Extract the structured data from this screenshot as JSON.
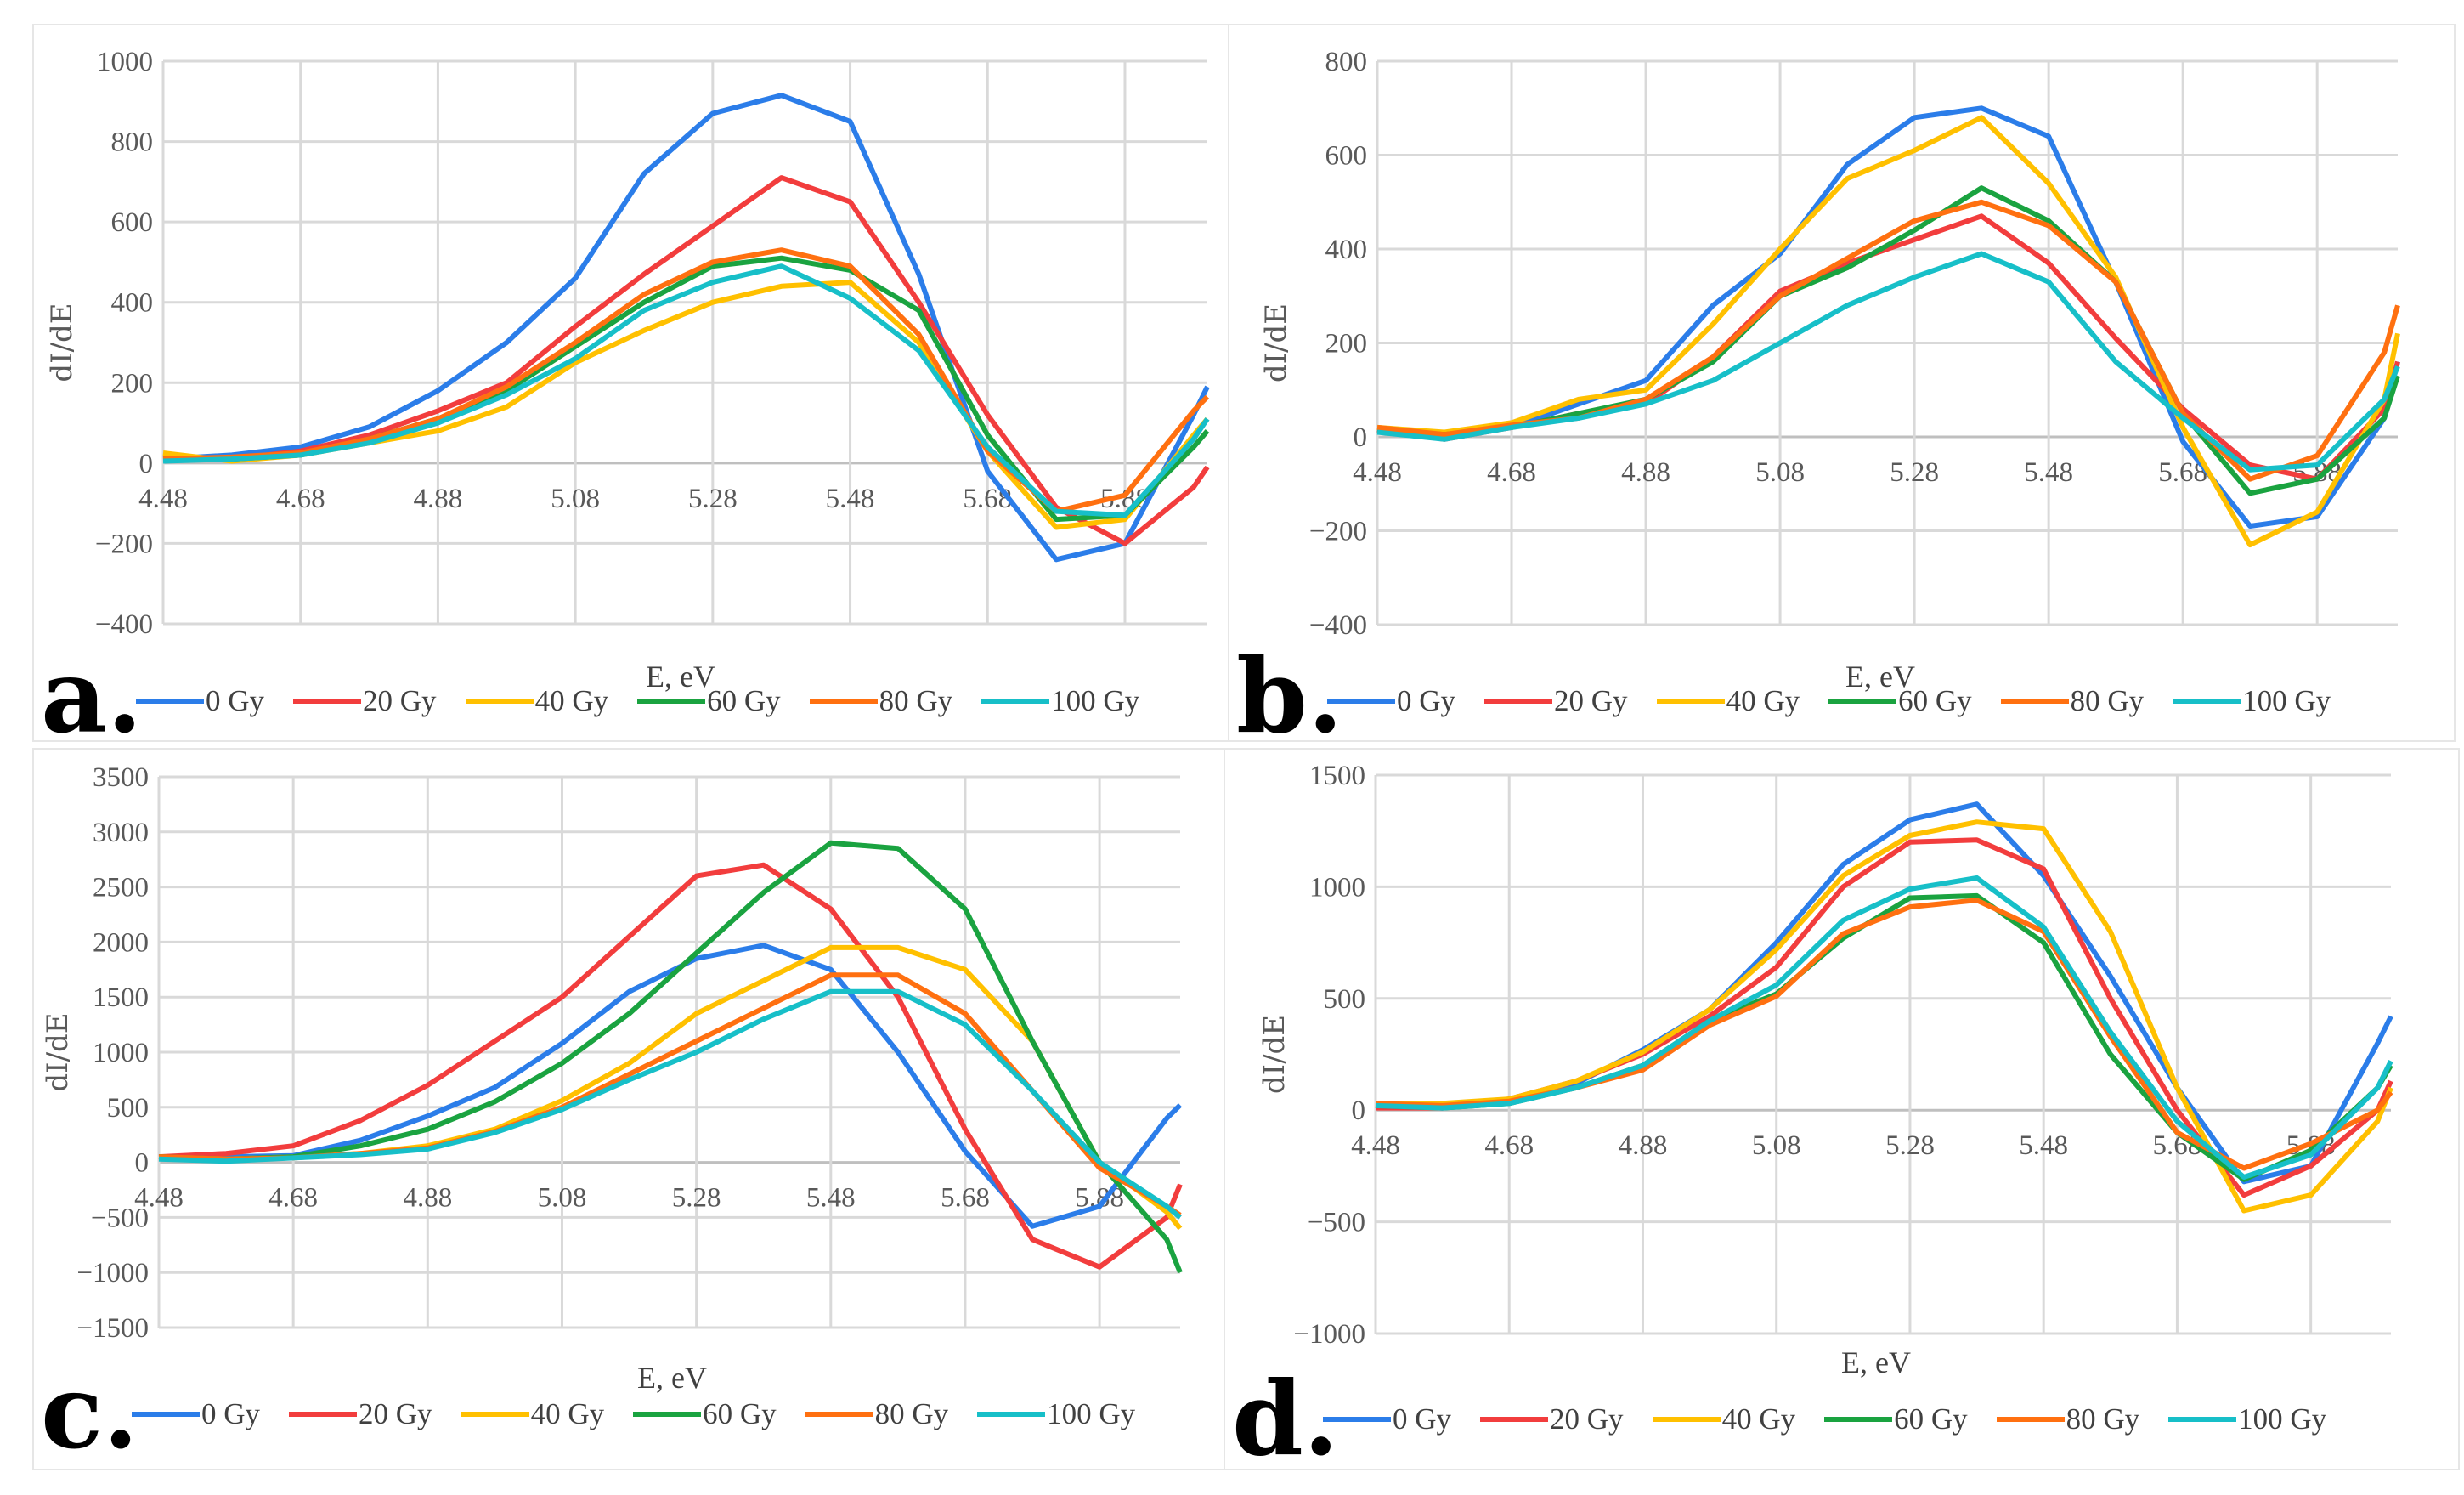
{
  "chart_data": [
    {
      "panel": "a.",
      "type": "line",
      "xlabel": "E, eV",
      "ylabel": "dI/dE",
      "xlim": [
        4.48,
        6.0
      ],
      "ylim": [
        -400,
        1000
      ],
      "xticks": [
        "4.48",
        "4.68",
        "4.88",
        "5.08",
        "5.28",
        "5.48",
        "5.68",
        "5.88"
      ],
      "yticks": [
        -400,
        -200,
        0,
        200,
        400,
        600,
        800,
        1000
      ],
      "ytick_labels": [
        "−400",
        "−200",
        "0",
        "200",
        "400",
        "600",
        "800",
        "1000"
      ],
      "grid": true,
      "legend_position": "bottom",
      "x": [
        4.48,
        4.58,
        4.68,
        4.78,
        4.88,
        4.98,
        5.08,
        5.18,
        5.28,
        5.38,
        5.48,
        5.58,
        5.68,
        5.78,
        5.88,
        5.98,
        6.0
      ],
      "series": [
        {
          "name": "0 Gy",
          "color": "#2b7de9",
          "values": [
            10,
            20,
            40,
            90,
            180,
            300,
            460,
            720,
            870,
            915,
            850,
            470,
            -20,
            -240,
            -200,
            120,
            190
          ]
        },
        {
          "name": "20 Gy",
          "color": "#f23d3d",
          "values": [
            10,
            10,
            30,
            70,
            130,
            200,
            340,
            470,
            590,
            710,
            650,
            400,
            120,
            -110,
            -200,
            -60,
            -10
          ]
        },
        {
          "name": "40 Gy",
          "color": "#ffc000",
          "values": [
            25,
            5,
            20,
            50,
            80,
            140,
            250,
            330,
            400,
            440,
            450,
            300,
            30,
            -160,
            -140,
            70,
            110
          ]
        },
        {
          "name": "60 Gy",
          "color": "#1aa340",
          "values": [
            10,
            10,
            20,
            60,
            110,
            180,
            290,
            400,
            490,
            510,
            480,
            380,
            70,
            -140,
            -130,
            40,
            80
          ]
        },
        {
          "name": "80 Gy",
          "color": "#ff7010",
          "values": [
            10,
            15,
            25,
            60,
            110,
            190,
            300,
            420,
            500,
            530,
            490,
            320,
            30,
            -120,
            -80,
            130,
            165
          ]
        },
        {
          "name": "100 Gy",
          "color": "#17bfc8",
          "values": [
            5,
            10,
            20,
            50,
            100,
            170,
            260,
            380,
            450,
            490,
            410,
            280,
            40,
            -120,
            -130,
            60,
            110
          ]
        }
      ]
    },
    {
      "panel": "b.",
      "type": "line",
      "xlabel": "E, eV",
      "ylabel": "dI/dE",
      "xlim": [
        4.48,
        6.0
      ],
      "ylim": [
        -400,
        800
      ],
      "xticks": [
        "4.48",
        "4.68",
        "4.88",
        "5.08",
        "5.28",
        "5.48",
        "5.68",
        "5.88"
      ],
      "yticks": [
        -400,
        -200,
        0,
        200,
        400,
        600,
        800
      ],
      "ytick_labels": [
        "−400",
        "−200",
        "0",
        "200",
        "400",
        "600",
        "800"
      ],
      "grid": true,
      "legend_position": "bottom",
      "x": [
        4.48,
        4.58,
        4.68,
        4.78,
        4.88,
        4.98,
        5.08,
        5.18,
        5.28,
        5.38,
        5.48,
        5.58,
        5.68,
        5.78,
        5.88,
        5.98,
        6.0
      ],
      "series": [
        {
          "name": "0 Gy",
          "color": "#2b7de9",
          "values": [
            15,
            0,
            20,
            70,
            120,
            280,
            390,
            580,
            680,
            700,
            640,
            330,
            -10,
            -190,
            -170,
            40,
            160
          ]
        },
        {
          "name": "20 Gy",
          "color": "#f23d3d",
          "values": [
            15,
            -5,
            20,
            50,
            70,
            170,
            310,
            370,
            420,
            470,
            370,
            210,
            60,
            -60,
            -90,
            60,
            160
          ]
        },
        {
          "name": "40 Gy",
          "color": "#ffc000",
          "values": [
            20,
            10,
            30,
            80,
            100,
            240,
            400,
            550,
            610,
            680,
            540,
            340,
            20,
            -230,
            -160,
            80,
            220
          ]
        },
        {
          "name": "60 Gy",
          "color": "#1aa340",
          "values": [
            15,
            5,
            20,
            50,
            80,
            160,
            300,
            360,
            440,
            530,
            460,
            330,
            50,
            -120,
            -90,
            40,
            130
          ]
        },
        {
          "name": "80 Gy",
          "color": "#ff7010",
          "values": [
            20,
            5,
            25,
            40,
            80,
            170,
            300,
            380,
            460,
            500,
            450,
            330,
            50,
            -90,
            -40,
            180,
            280
          ]
        },
        {
          "name": "100 Gy",
          "color": "#17bfc8",
          "values": [
            10,
            -5,
            20,
            40,
            70,
            120,
            200,
            280,
            340,
            390,
            330,
            160,
            40,
            -70,
            -60,
            80,
            150
          ]
        }
      ]
    },
    {
      "panel": "c.",
      "type": "line",
      "xlabel": "E, eV",
      "ylabel": "dI/dE",
      "xlim": [
        4.48,
        6.0
      ],
      "ylim": [
        -1500,
        3500
      ],
      "xticks": [
        "4.48",
        "4.68",
        "4.88",
        "5.08",
        "5.28",
        "5.48",
        "5.68",
        "5.88"
      ],
      "yticks": [
        -1500,
        -1000,
        -500,
        0,
        500,
        1000,
        1500,
        2000,
        2500,
        3000,
        3500
      ],
      "ytick_labels": [
        "−1500",
        "−1000",
        "−500",
        "0",
        "500",
        "1000",
        "1500",
        "2000",
        "2500",
        "3000",
        "3500"
      ],
      "grid": true,
      "legend_position": "bottom",
      "x": [
        4.48,
        4.58,
        4.68,
        4.78,
        4.88,
        4.98,
        5.08,
        5.18,
        5.28,
        5.38,
        5.48,
        5.58,
        5.68,
        5.78,
        5.88,
        5.98,
        6.0
      ],
      "series": [
        {
          "name": "0 Gy",
          "color": "#2b7de9",
          "values": [
            50,
            50,
            60,
            200,
            420,
            680,
            1080,
            1550,
            1850,
            1970,
            1750,
            1000,
            100,
            -580,
            -400,
            400,
            520
          ]
        },
        {
          "name": "20 Gy",
          "color": "#f23d3d",
          "values": [
            50,
            80,
            150,
            380,
            700,
            1100,
            1500,
            2050,
            2600,
            2700,
            2300,
            1500,
            300,
            -700,
            -950,
            -500,
            -200
          ]
        },
        {
          "name": "40 Gy",
          "color": "#ffc000",
          "values": [
            50,
            30,
            50,
            80,
            150,
            300,
            560,
            900,
            1350,
            1650,
            1950,
            1950,
            1750,
            1100,
            0,
            -450,
            -600
          ]
        },
        {
          "name": "60 Gy",
          "color": "#1aa340",
          "values": [
            50,
            30,
            50,
            150,
            300,
            550,
            900,
            1350,
            1900,
            2450,
            2900,
            2850,
            2300,
            1100,
            0,
            -700,
            -1000
          ]
        },
        {
          "name": "80 Gy",
          "color": "#ff7010",
          "values": [
            50,
            30,
            40,
            80,
            130,
            280,
            500,
            800,
            1100,
            1400,
            1700,
            1700,
            1350,
            650,
            -50,
            -400,
            -480
          ]
        },
        {
          "name": "100 Gy",
          "color": "#17bfc8",
          "values": [
            30,
            10,
            40,
            70,
            120,
            270,
            480,
            750,
            1000,
            1300,
            1550,
            1550,
            1250,
            650,
            0,
            -400,
            -500
          ]
        }
      ]
    },
    {
      "panel": "d.",
      "type": "line",
      "xlabel": "E, eV",
      "ylabel": "dI/dE",
      "xlim": [
        4.48,
        6.0
      ],
      "ylim": [
        -1000,
        1500
      ],
      "xticks": [
        "4.48",
        "4.68",
        "4.88",
        "5.08",
        "5.28",
        "5.48",
        "5.68",
        "5.88"
      ],
      "yticks": [
        -1000,
        -500,
        0,
        500,
        1000,
        1500
      ],
      "ytick_labels": [
        "−1000",
        "−500",
        "0",
        "500",
        "1000",
        "1500"
      ],
      "grid": true,
      "legend_position": "bottom",
      "x": [
        4.48,
        4.58,
        4.68,
        4.78,
        4.88,
        4.98,
        5.08,
        5.18,
        5.28,
        5.38,
        5.48,
        5.58,
        5.68,
        5.78,
        5.88,
        5.98,
        6.0
      ],
      "series": [
        {
          "name": "0 Gy",
          "color": "#2b7de9",
          "values": [
            20,
            10,
            40,
            120,
            270,
            450,
            750,
            1100,
            1300,
            1370,
            1050,
            600,
            100,
            -320,
            -250,
            300,
            420
          ]
        },
        {
          "name": "20 Gy",
          "color": "#f23d3d",
          "values": [
            10,
            10,
            50,
            130,
            250,
            420,
            640,
            1000,
            1200,
            1210,
            1080,
            500,
            0,
            -380,
            -250,
            0,
            130
          ]
        },
        {
          "name": "40 Gy",
          "color": "#ffc000",
          "values": [
            30,
            30,
            50,
            130,
            260,
            450,
            720,
            1050,
            1230,
            1290,
            1260,
            800,
            100,
            -450,
            -380,
            -50,
            100
          ]
        },
        {
          "name": "60 Gy",
          "color": "#1aa340",
          "values": [
            20,
            10,
            30,
            100,
            200,
            400,
            520,
            770,
            950,
            960,
            750,
            250,
            -100,
            -310,
            -180,
            100,
            200
          ]
        },
        {
          "name": "80 Gy",
          "color": "#ff7010",
          "values": [
            30,
            20,
            40,
            100,
            180,
            380,
            510,
            790,
            910,
            940,
            800,
            330,
            -100,
            -260,
            -150,
            0,
            80
          ]
        },
        {
          "name": "100 Gy",
          "color": "#17bfc8",
          "values": [
            20,
            10,
            30,
            100,
            200,
            400,
            560,
            850,
            990,
            1040,
            820,
            350,
            -50,
            -300,
            -200,
            100,
            220
          ]
        }
      ]
    }
  ]
}
